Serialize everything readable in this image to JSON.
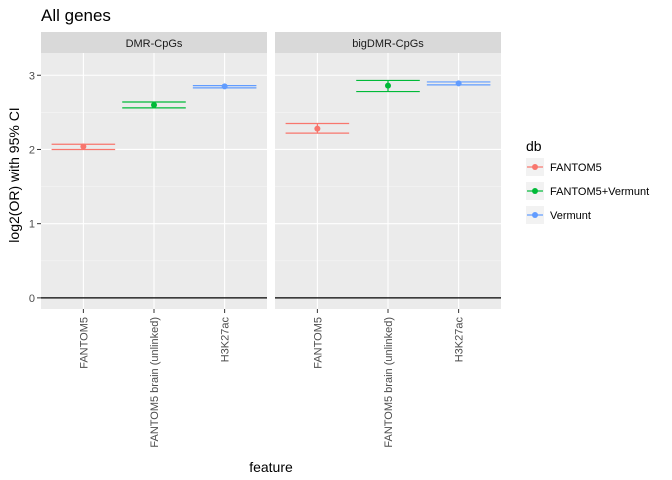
{
  "chart_data": {
    "type": "scatter",
    "title": "All genes",
    "xlabel": "feature",
    "ylabel": "log2(OR) with 95% CI",
    "ylim": [
      -0.15,
      3.3
    ],
    "yticks": [
      0,
      1,
      2,
      3
    ],
    "grid": true,
    "reference_line": 0,
    "categories": [
      "FANTOM5",
      "FANTOM5 brain (unlinked)",
      "H3K27ac"
    ],
    "legend": {
      "title": "db",
      "position": "right",
      "entries": [
        {
          "name": "FANTOM5",
          "color": "#F8766D"
        },
        {
          "name": "FANTOM5+Vermunt",
          "color": "#00BA38"
        },
        {
          "name": "Vermunt",
          "color": "#619CFF"
        }
      ]
    },
    "panels": [
      {
        "label": "DMR-CpGs",
        "points": [
          {
            "category": "FANTOM5",
            "db": "FANTOM5",
            "estimate": 2.04,
            "ci_low": 2.0,
            "ci_high": 2.07
          },
          {
            "category": "FANTOM5 brain (unlinked)",
            "db": "FANTOM5+Vermunt",
            "estimate": 2.6,
            "ci_low": 2.56,
            "ci_high": 2.64
          },
          {
            "category": "H3K27ac",
            "db": "Vermunt",
            "estimate": 2.85,
            "ci_low": 2.83,
            "ci_high": 2.86
          }
        ]
      },
      {
        "label": "bigDMR-CpGs",
        "points": [
          {
            "category": "FANTOM5",
            "db": "FANTOM5",
            "estimate": 2.28,
            "ci_low": 2.22,
            "ci_high": 2.35
          },
          {
            "category": "FANTOM5 brain (unlinked)",
            "db": "FANTOM5+Vermunt",
            "estimate": 2.86,
            "ci_low": 2.78,
            "ci_high": 2.93
          },
          {
            "category": "H3K27ac",
            "db": "Vermunt",
            "estimate": 2.89,
            "ci_low": 2.87,
            "ci_high": 2.91
          }
        ]
      }
    ]
  }
}
